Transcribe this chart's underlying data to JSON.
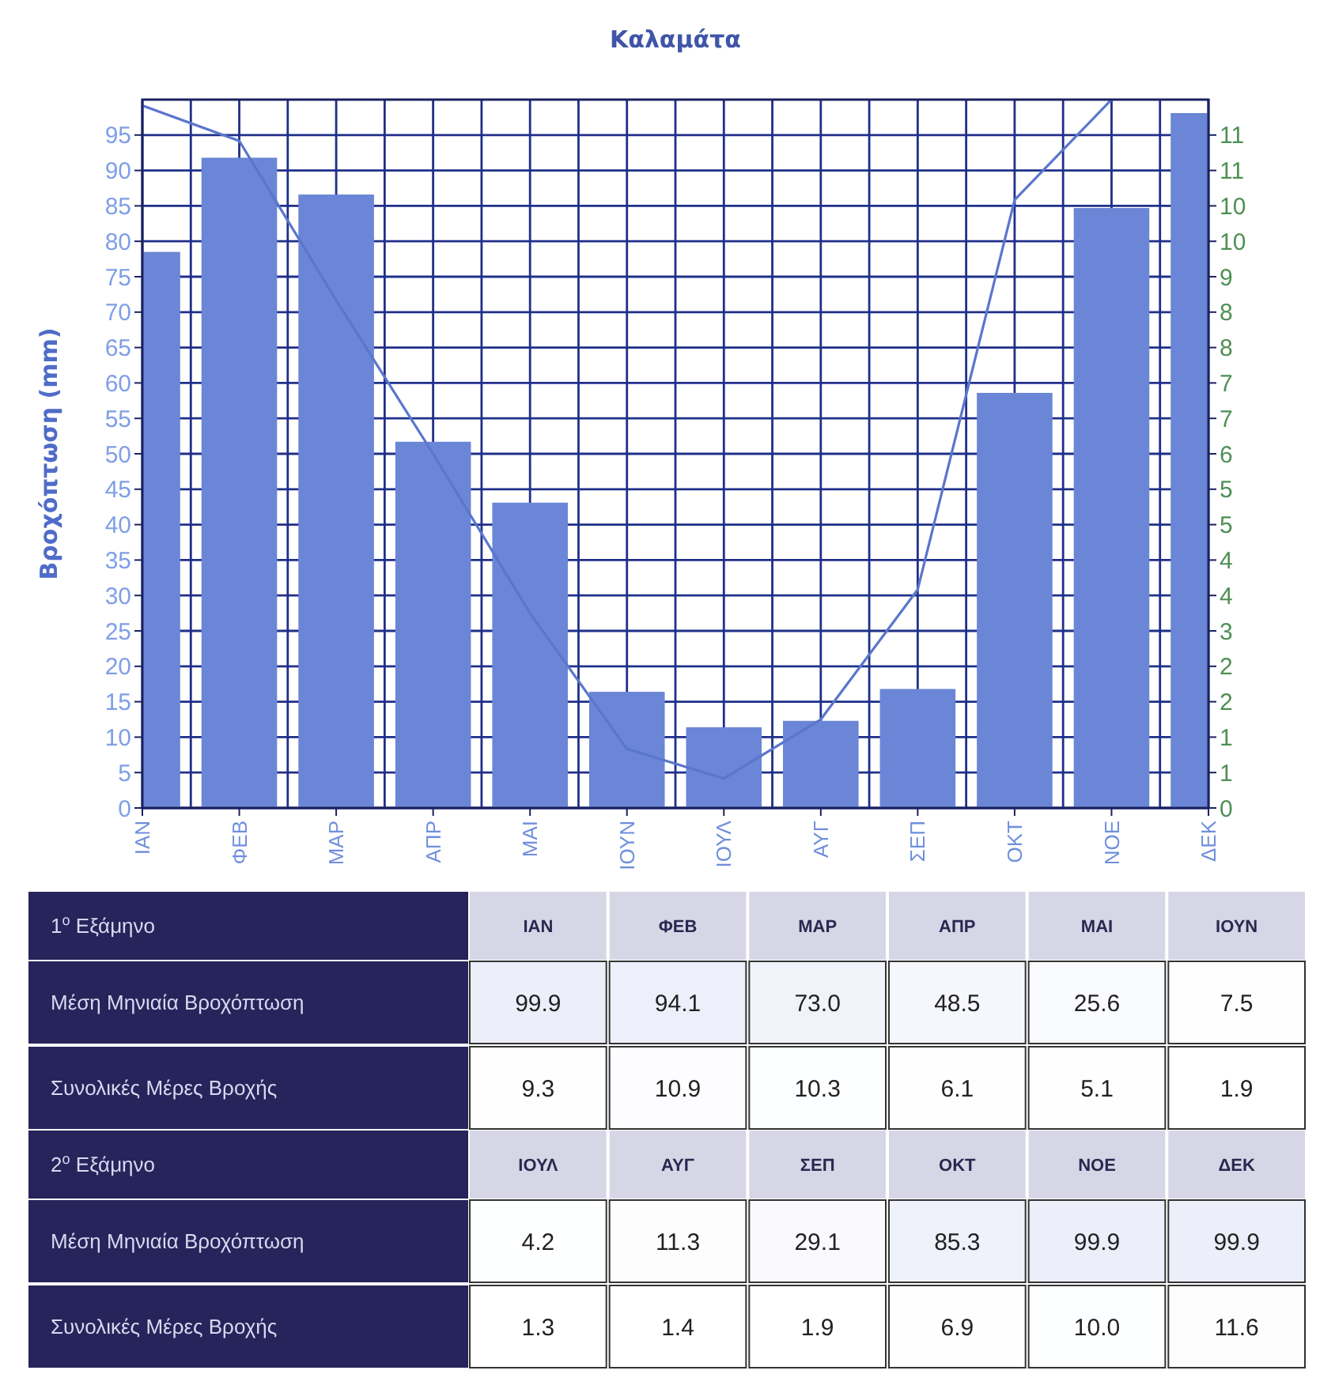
{
  "chart_data": [
    {
      "type": "bar",
      "title": "Καλαμάτα",
      "ylabel": "Βροχόπτωση (mm)",
      "categories": [
        "ΙΑΝ",
        "ΦΕΒ",
        "ΜΑΡ",
        "ΑΠΡ",
        "ΜΑΙ",
        "ΙΟΥΝ",
        "ΙΟΥΛ",
        "ΑΥΓ",
        "ΣΕΠ",
        "ΟΚΤ",
        "ΝΟΕ",
        "ΔΕΚ"
      ],
      "series": [
        {
          "type": "bar",
          "color": "#6b86d6",
          "values": [
            78.5,
            91.8,
            86.6,
            51.7,
            43.1,
            16.4,
            11.4,
            12.3,
            16.8,
            58.6,
            84.7,
            98.1
          ]
        },
        {
          "type": "line",
          "axis": "y2",
          "color": "#5a76cc",
          "values": [
            11.9,
            11.3,
            8.6,
            6.0,
            3.3,
            1.0,
            0.5,
            1.5,
            3.7,
            10.3,
            12.0,
            null
          ]
        }
      ],
      "ylim": [
        0,
        100
      ],
      "yticks": [
        0,
        5,
        10,
        15,
        20,
        25,
        30,
        35,
        40,
        45,
        50,
        55,
        60,
        65,
        70,
        75,
        80,
        85,
        90,
        95
      ],
      "y2lim": [
        0,
        12
      ],
      "y2ticks": [
        0,
        {
          "value": 0.6,
          "label": "1"
        },
        {
          "value": 1.2,
          "label": "1"
        },
        {
          "value": 1.8,
          "label": "2"
        },
        {
          "value": 2.4,
          "label": "2"
        },
        3,
        {
          "value": 3.6,
          "label": "4"
        },
        {
          "value": 4.2,
          "label": "4"
        },
        {
          "value": 4.8,
          "label": "5"
        },
        {
          "value": 5.4,
          "label": "5"
        },
        6,
        {
          "value": 6.6,
          "label": "7"
        },
        {
          "value": 7.2,
          "label": "7"
        },
        {
          "value": 7.8,
          "label": "8"
        },
        {
          "value": 8.4,
          "label": "8"
        },
        9,
        {
          "value": 9.6,
          "label": "10"
        },
        {
          "value": 10.2,
          "label": "10"
        },
        {
          "value": 10.8,
          "label": "11"
        },
        {
          "value": 11.4,
          "label": "11"
        }
      ],
      "grid": true,
      "marker": "none",
      "line_style": "solid"
    },
    {
      "type": "heatmap",
      "title": "1$^{o}$ Εξάμηνο",
      "categories": [
        "ΙΑΝ",
        "ΦΕΒ",
        "ΜΑΡ",
        "ΑΠΡ",
        "ΜΑΙ",
        "ΙΟΥΝ"
      ],
      "y_categories": [
        "Μέση Μηνιαία Βροχόπτωση",
        "Συνολικές Μέρες Βροχής"
      ],
      "cells": [
        [
          99.9,
          94.1,
          73.0,
          48.5,
          25.6,
          7.5
        ],
        [
          9.3,
          10.9,
          10.3,
          6.1,
          5.1,
          1.9
        ]
      ],
      "cell_labels": [
        [
          "99.9",
          "94.1",
          "73.0",
          "48.5",
          "25.6",
          "7.5"
        ],
        [
          "9.3",
          "10.9",
          "10.3",
          "6.1",
          "5.1",
          "1.9"
        ]
      ]
    },
    {
      "type": "heatmap",
      "title": "2$^{o}$ Εξάμηνο",
      "categories": [
        "ΙΟΥΛ",
        "ΑΥΓ",
        "ΣΕΠ",
        "ΟΚΤ",
        "ΝΟΕ",
        "ΔΕΚ"
      ],
      "y_categories": [
        "Μέση Μηνιαία Βροχόπτωση",
        "Συνολικές Μέρες Βροχής"
      ],
      "cells": [
        [
          4.2,
          11.3,
          29.1,
          85.3,
          99.9,
          99.9
        ],
        [
          1.3,
          1.4,
          1.9,
          6.9,
          10.0,
          11.6
        ]
      ],
      "cell_labels": [
        [
          "4.2",
          "11.3",
          "29.1",
          "85.3",
          "99.9",
          "99.9"
        ],
        [
          "1.3",
          "1.4",
          "1.9",
          "6.9",
          "10.0",
          "11.6"
        ]
      ]
    }
  ]
}
